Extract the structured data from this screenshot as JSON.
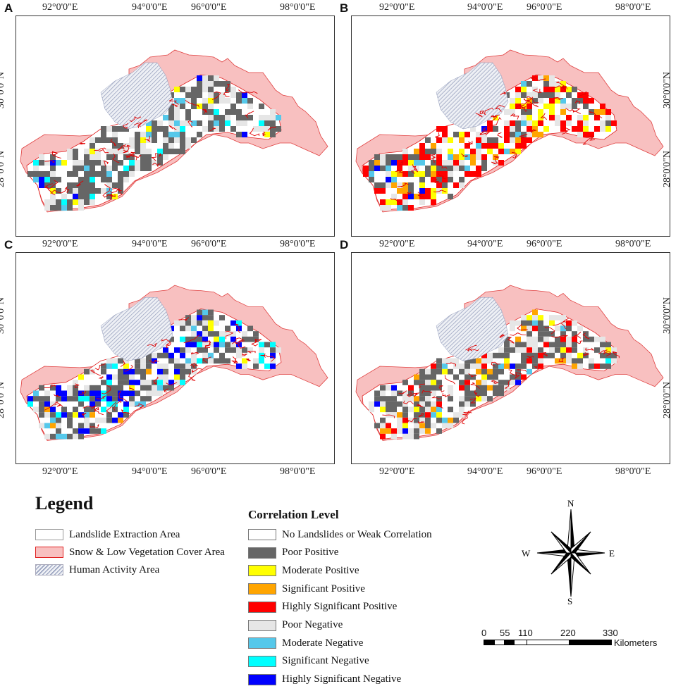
{
  "panels": [
    {
      "label": "A",
      "fill_mix": {
        "#666666": 0.55,
        "#e6e6e6": 0.3,
        "#00ffff": 0.05,
        "#55c8ea": 0.05,
        "#ffff00": 0.03,
        "#0000ff": 0.02
      }
    },
    {
      "label": "B",
      "fill_mix": {
        "#ff0000": 0.28,
        "#ffff00": 0.14,
        "#ffa500": 0.1,
        "#666666": 0.25,
        "#e6e6e6": 0.18,
        "#55c8ea": 0.03,
        "#0000ff": 0.02
      }
    },
    {
      "label": "C",
      "fill_mix": {
        "#0000ff": 0.22,
        "#666666": 0.38,
        "#e6e6e6": 0.24,
        "#00ffff": 0.07,
        "#55c8ea": 0.05,
        "#ffff00": 0.03,
        "#ffa500": 0.01
      }
    },
    {
      "label": "D",
      "fill_mix": {
        "#666666": 0.45,
        "#e6e6e6": 0.26,
        "#ffff00": 0.09,
        "#ffa500": 0.07,
        "#ff0000": 0.06,
        "#55c8ea": 0.04,
        "#0000ff": 0.02,
        "#00ffff": 0.01
      }
    }
  ],
  "axes": {
    "x_ticks": [
      "92°0'0\"E",
      "94°0'0\"E",
      "96°0'0\"E",
      "98°0'0\"E"
    ],
    "y_ticks": [
      "30°0'0\"N",
      "28°0'0\"N"
    ]
  },
  "legend": {
    "title": "Legend",
    "items": [
      {
        "label": "Landslide Extraction Area",
        "color": "#ffffff",
        "border": "#999999"
      },
      {
        "label": "Snow & Low Vegetation Cover Area",
        "color": "#f8c0c0",
        "border": "#e02020"
      },
      {
        "label": "Human Activity Area",
        "color": "hatch",
        "border": "#8e98b8"
      }
    ]
  },
  "correlation": {
    "title": "Correlation Level",
    "items": [
      {
        "label": "No Landslides or Weak Correlation",
        "color": "#ffffff"
      },
      {
        "label": "Poor Positive",
        "color": "#666666"
      },
      {
        "label": "Moderate Positive",
        "color": "#ffff00"
      },
      {
        "label": "Significant Positive",
        "color": "#ffa500"
      },
      {
        "label": "Highly Significant Positive",
        "color": "#ff0000"
      },
      {
        "label": "Poor Negative",
        "color": "#e6e6e6"
      },
      {
        "label": "Moderate Negative",
        "color": "#55c8ea"
      },
      {
        "label": "Significant Negative",
        "color": "#00ffff"
      },
      {
        "label": "Highly Significant Negative",
        "color": "#0000ff"
      }
    ]
  },
  "compass": {
    "n": "N",
    "s": "S",
    "e": "E",
    "w": "W"
  },
  "scale_bar": {
    "ticks": [
      "0",
      "55",
      "110",
      "220",
      "330"
    ],
    "unit": "Kilometers"
  }
}
